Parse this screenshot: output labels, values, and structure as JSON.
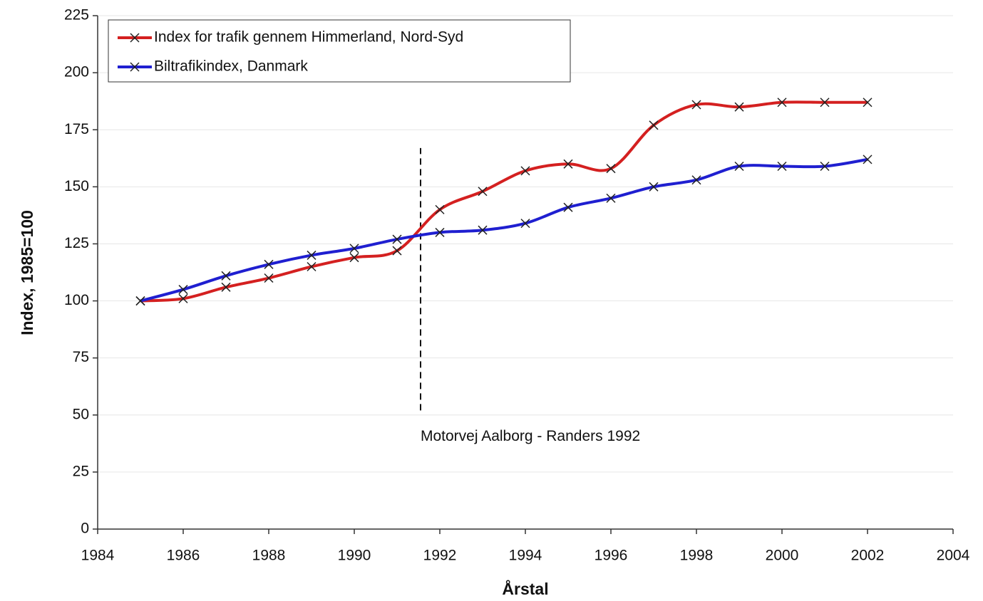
{
  "chart_data": {
    "type": "line",
    "x": [
      1985,
      1986,
      1987,
      1988,
      1989,
      1990,
      1991,
      1992,
      1993,
      1994,
      1995,
      1996,
      1997,
      1998,
      1999,
      2000,
      2001,
      2002
    ],
    "series": [
      {
        "name": "Index for trafik gennem Himmerland, Nord-Syd",
        "color": "#d42020",
        "values": [
          100,
          101,
          106,
          110,
          115,
          119,
          122,
          140,
          148,
          157,
          160,
          158,
          177,
          186,
          185,
          187,
          187,
          187
        ]
      },
      {
        "name": "Biltrafikindex, Danmark",
        "color": "#1f1fd0",
        "values": [
          100,
          105,
          111,
          116,
          120,
          123,
          127,
          130,
          131,
          134,
          141,
          145,
          150,
          153,
          159,
          159,
          159,
          162
        ]
      }
    ],
    "xlabel": "Årstal",
    "ylabel": "Index, 1985=100",
    "xlim": [
      1984,
      2004
    ],
    "xticks": [
      1984,
      1986,
      1988,
      1990,
      1992,
      1994,
      1996,
      1998,
      2000,
      2002,
      2004
    ],
    "ylim": [
      0,
      225
    ],
    "yticks": [
      0,
      25,
      50,
      75,
      100,
      125,
      150,
      175,
      200,
      225
    ],
    "grid": true,
    "legend": "upper left",
    "annotation": {
      "text": "Motorvej Aalborg - Randers 1992",
      "x": 1991.55,
      "y": [
        52,
        167
      ]
    }
  }
}
